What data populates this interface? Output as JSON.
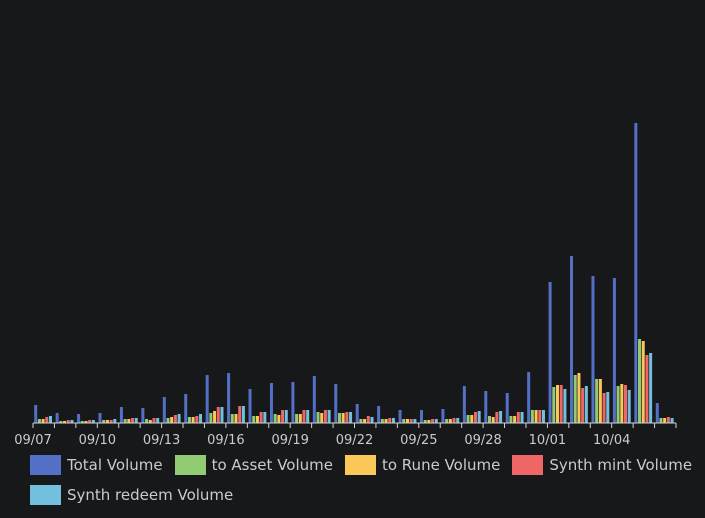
{
  "chart_data": {
    "type": "bar",
    "categories": [
      "09/07",
      "09/08",
      "09/09",
      "09/10",
      "09/11",
      "09/12",
      "09/13",
      "09/14",
      "09/15",
      "09/16",
      "09/17",
      "09/18",
      "09/19",
      "09/20",
      "09/21",
      "09/22",
      "09/23",
      "09/24",
      "09/25",
      "09/26",
      "09/27",
      "09/28",
      "09/29",
      "09/30",
      "10/01",
      "10/02",
      "10/03",
      "10/04",
      "10/05",
      "10/06"
    ],
    "tick_labels": [
      "09/07",
      "09/10",
      "09/13",
      "09/16",
      "09/19",
      "09/22",
      "09/25",
      "09/28",
      "10/01",
      "10/04"
    ],
    "ylim": [
      0,
      300
    ],
    "grid": false,
    "legend_position": "bottom",
    "series": [
      {
        "name": "Total Volume",
        "color": "#5470c6",
        "values": [
          18,
          10,
          9,
          10,
          16,
          15,
          26,
          29,
          48,
          50,
          34,
          40,
          41,
          47,
          39,
          19,
          17,
          13,
          13,
          14,
          37,
          32,
          30,
          51,
          141,
          167,
          147,
          145,
          300,
          20
        ]
      },
      {
        "name": "to Asset Volume",
        "color": "#91cc75",
        "values": [
          4,
          2,
          2,
          3,
          4,
          4,
          5,
          6,
          10,
          9,
          7,
          9,
          9,
          11,
          10,
          4,
          4,
          4,
          3,
          4,
          8,
          7,
          7,
          13,
          36,
          48,
          44,
          37,
          84,
          5
        ]
      },
      {
        "name": "to Rune Volume",
        "color": "#fac858",
        "values": [
          4,
          2,
          2,
          3,
          4,
          3,
          6,
          6,
          12,
          9,
          7,
          8,
          9,
          10,
          10,
          4,
          4,
          4,
          3,
          4,
          8,
          6,
          7,
          13,
          38,
          50,
          44,
          39,
          82,
          5
        ]
      },
      {
        "name": "Synth mint Volume",
        "color": "#ee6666",
        "values": [
          6,
          3,
          3,
          3,
          5,
          5,
          8,
          7,
          16,
          17,
          11,
          13,
          13,
          13,
          11,
          7,
          5,
          4,
          4,
          5,
          11,
          11,
          11,
          13,
          38,
          35,
          30,
          38,
          68,
          6
        ]
      },
      {
        "name": "Synth redeem Volume",
        "color": "#73c0de",
        "values": [
          7,
          3,
          3,
          4,
          5,
          5,
          9,
          9,
          16,
          17,
          11,
          13,
          13,
          13,
          11,
          6,
          5,
          4,
          4,
          5,
          12,
          12,
          11,
          13,
          34,
          37,
          31,
          33,
          70,
          5
        ]
      }
    ]
  }
}
